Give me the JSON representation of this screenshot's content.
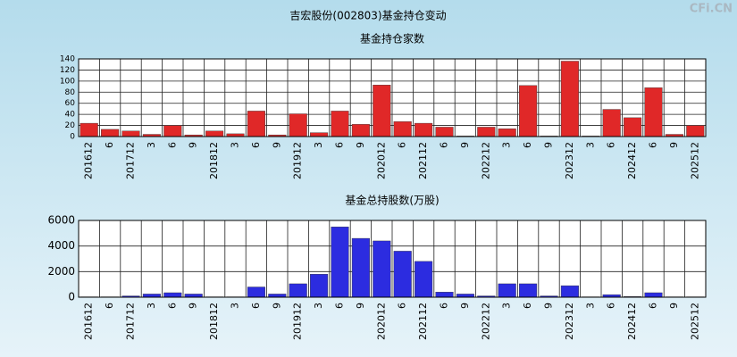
{
  "title": "吉宏股份(002803)基金持仓变动",
  "watermark": "CFi.CN",
  "chart_data": [
    {
      "type": "bar",
      "title": "基金持仓家数",
      "categories": [
        "201612",
        "6",
        "201712",
        "3",
        "6",
        "9",
        "201812",
        "3",
        "6",
        "9",
        "201912",
        "3",
        "6",
        "9",
        "202012",
        "6",
        "202112",
        "6",
        "9",
        "202212",
        "3",
        "6",
        "9",
        "202312",
        "3",
        "6",
        "202412",
        "6",
        "9",
        "202512"
      ],
      "values": [
        24,
        13,
        10,
        4,
        20,
        3,
        10,
        5,
        46,
        3,
        41,
        7,
        46,
        22,
        93,
        27,
        24,
        17,
        1,
        17,
        14,
        92,
        1,
        136,
        1,
        49,
        34,
        88,
        4,
        20
      ],
      "color": "#e02828",
      "ylim": [
        0,
        140
      ],
      "yticks": [
        0,
        20,
        40,
        60,
        80,
        100,
        120,
        140
      ],
      "grid": true
    },
    {
      "type": "bar",
      "title": "基金总持股数(万股)",
      "categories": [
        "201612",
        "6",
        "201712",
        "3",
        "6",
        "9",
        "201812",
        "3",
        "6",
        "9",
        "201912",
        "3",
        "6",
        "9",
        "202012",
        "6",
        "202112",
        "6",
        "9",
        "202212",
        "3",
        "6",
        "9",
        "202312",
        "3",
        "6",
        "202412",
        "6",
        "9",
        "202512"
      ],
      "values": [
        30,
        30,
        100,
        250,
        350,
        250,
        30,
        30,
        800,
        250,
        1050,
        1800,
        5500,
        4600,
        4400,
        3600,
        2800,
        400,
        250,
        100,
        1050,
        1050,
        100,
        900,
        30,
        200,
        50,
        350,
        30,
        30
      ],
      "color": "#2c2ce0",
      "ylim": [
        0,
        6000
      ],
      "yticks": [
        0,
        2000,
        4000,
        6000
      ],
      "grid": true
    }
  ]
}
